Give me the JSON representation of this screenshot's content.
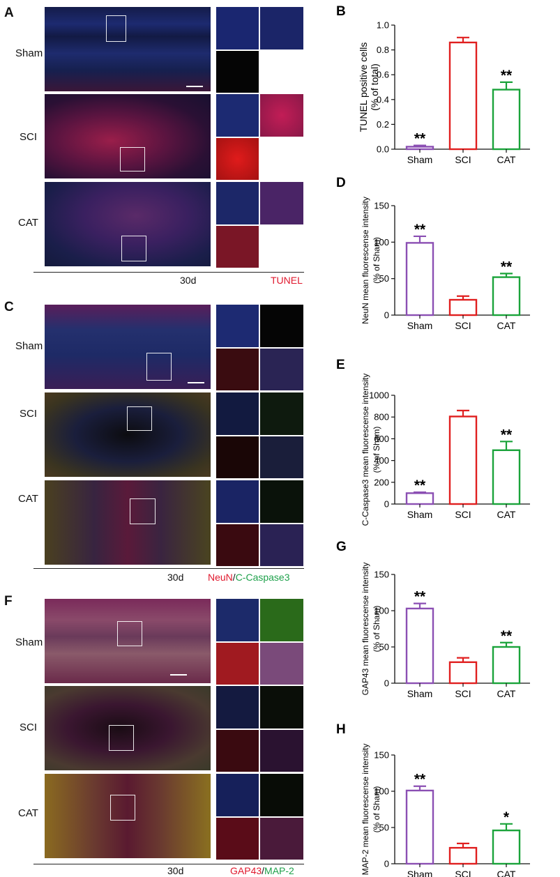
{
  "colors": {
    "sham": "#8b4fb3",
    "sci": "#e01f1f",
    "cat": "#1aa33a",
    "red": "#e0182d",
    "green": "#1ea14b"
  },
  "panels": {
    "A": {
      "letter": "A",
      "rows": [
        "Sham",
        "SCI",
        "CAT"
      ],
      "time": "30d",
      "stain": "TUNEL"
    },
    "C": {
      "letter": "C",
      "rows": [
        "Sham",
        "SCI",
        "CAT"
      ],
      "time": "30d",
      "stain_part1": "NeuN",
      "stain_sep": "/",
      "stain_part2": "C-Caspase3"
    },
    "F": {
      "letter": "F",
      "rows": [
        "Sham",
        "SCI",
        "CAT"
      ],
      "time": "30d",
      "stain_part1": "GAP43",
      "stain_sep": "/",
      "stain_part2": "MAP-2"
    }
  },
  "chart_data": [
    {
      "letter": "B",
      "type": "bar",
      "categories": [
        "Sham",
        "SCI",
        "CAT"
      ],
      "values": [
        0.02,
        0.86,
        0.48
      ],
      "errors": [
        0.01,
        0.04,
        0.06
      ],
      "ylabel": [
        "TUNEL positive cells",
        "(% of total)"
      ],
      "ylim": [
        0,
        1.0
      ],
      "yticks": [
        "0.0",
        "0.2",
        "0.4",
        "0.6",
        "0.8",
        "1.0"
      ],
      "tickvals": [
        0,
        0.2,
        0.4,
        0.6,
        0.8,
        1.0
      ],
      "annotations": [
        "**",
        "",
        "**"
      ]
    },
    {
      "letter": "D",
      "type": "bar",
      "categories": [
        "Sham",
        "SCI",
        "CAT"
      ],
      "values": [
        99,
        21,
        52
      ],
      "errors": [
        9,
        5,
        5
      ],
      "ylabel": [
        "NeuN mean fluorescense intensity",
        "(% of Sham)"
      ],
      "ylim": [
        0,
        150
      ],
      "yticks": [
        "0",
        "50",
        "100",
        "150"
      ],
      "tickvals": [
        0,
        50,
        100,
        150
      ],
      "annotations": [
        "**",
        "",
        "**"
      ]
    },
    {
      "letter": "E",
      "type": "bar",
      "categories": [
        "Sham",
        "SCI",
        "CAT"
      ],
      "values": [
        100,
        805,
        495
      ],
      "errors": [
        8,
        55,
        80
      ],
      "ylabel": [
        "C-Caspase3 mean fluorescense intensity",
        "(% of Sham)"
      ],
      "ylim": [
        0,
        1000
      ],
      "yticks": [
        "0",
        "200",
        "400",
        "600",
        "800",
        "1000"
      ],
      "tickvals": [
        0,
        200,
        400,
        600,
        800,
        1000
      ],
      "annotations": [
        "**",
        "",
        "**"
      ]
    },
    {
      "letter": "G",
      "type": "bar",
      "categories": [
        "Sham",
        "SCI",
        "CAT"
      ],
      "values": [
        103,
        29,
        50
      ],
      "errors": [
        7,
        6,
        6
      ],
      "ylabel": [
        "GAP43 mean fluorescense intensity",
        "(% of Sham)"
      ],
      "ylim": [
        0,
        150
      ],
      "yticks": [
        "0",
        "50",
        "100",
        "150"
      ],
      "tickvals": [
        0,
        50,
        100,
        150
      ],
      "annotations": [
        "**",
        "",
        "**"
      ]
    },
    {
      "letter": "H",
      "type": "bar",
      "categories": [
        "Sham",
        "SCI",
        "CAT"
      ],
      "values": [
        101,
        22,
        46
      ],
      "errors": [
        6,
        6,
        9
      ],
      "ylabel": [
        "MAP-2 mean fluorescense intensity",
        "(% of Sham)"
      ],
      "ylim": [
        0,
        150
      ],
      "yticks": [
        "0",
        "50",
        "100",
        "150"
      ],
      "tickvals": [
        0,
        50,
        100,
        150
      ],
      "annotations": [
        "**",
        "",
        "*"
      ]
    }
  ]
}
